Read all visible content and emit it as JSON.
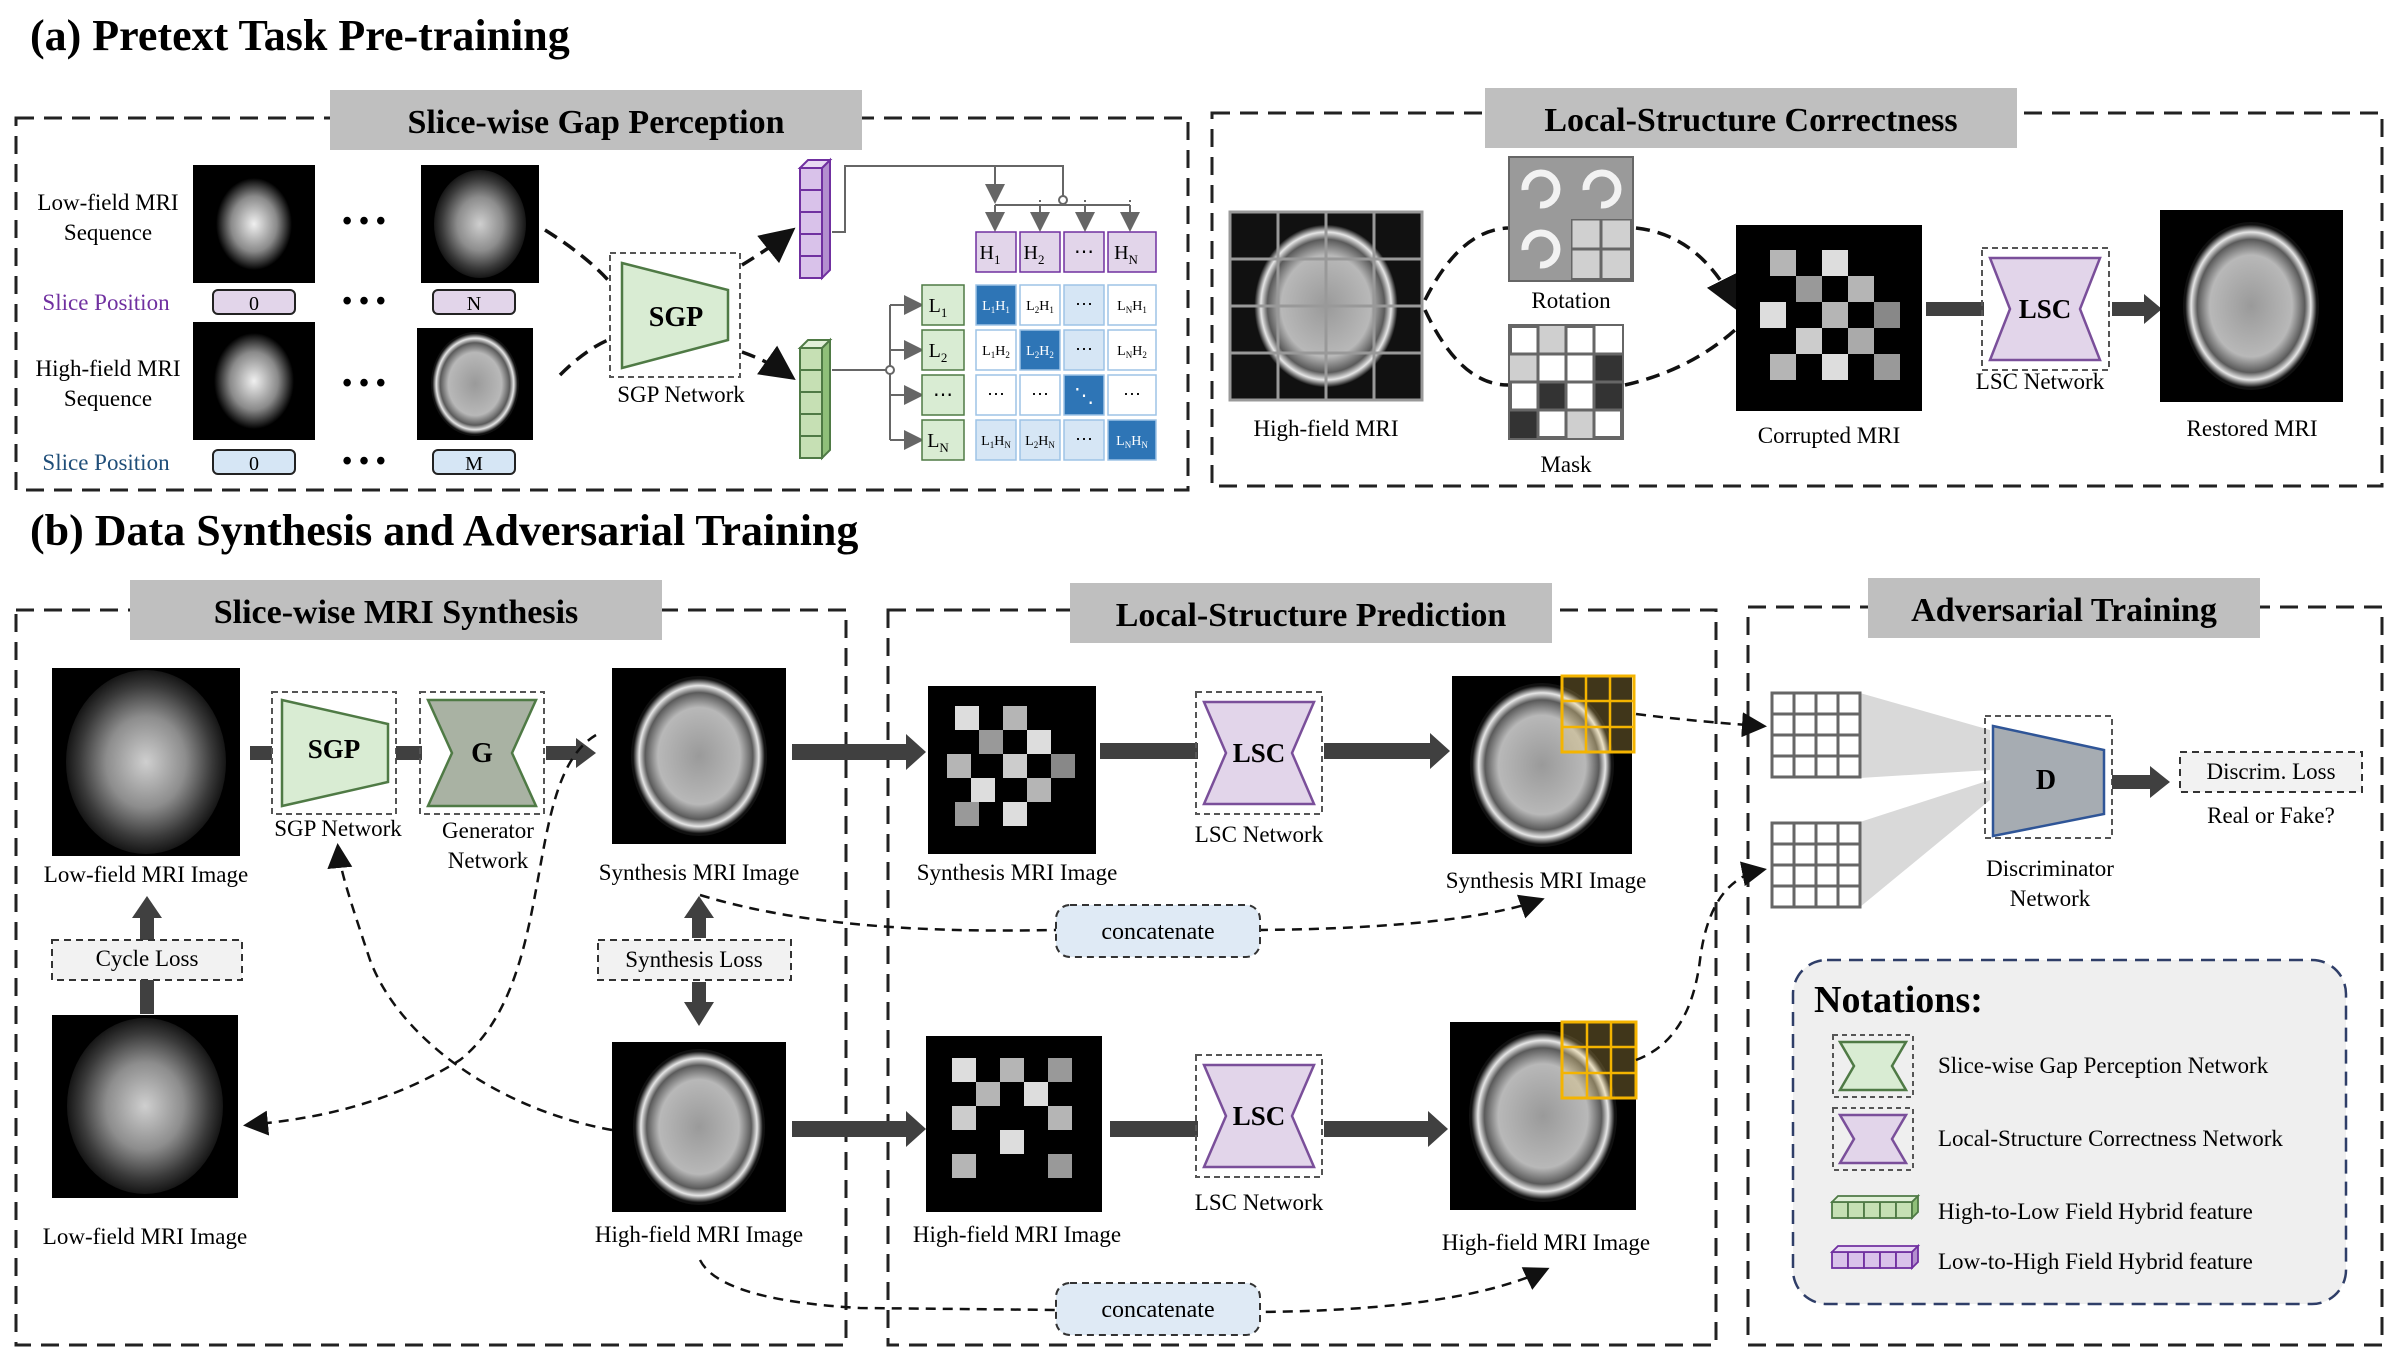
{
  "sections": {
    "a_title": "(a) Pretext Task Pre-training",
    "b_title": "(b) Data Synthesis and Adversarial Training"
  },
  "panels": {
    "sgp_title": "Slice-wise Gap Perception",
    "lsc_title": "Local-Structure Correctness",
    "synth_title": "Slice-wise MRI Synthesis",
    "pred_title": "Local-Structure Prediction",
    "adv_title": "Adversarial Training"
  },
  "sgp_panel": {
    "low_seq_line1": "Low-field MRI",
    "low_seq_line2": "Sequence",
    "high_seq_line1": "High-field MRI",
    "high_seq_line2": "Sequence",
    "slice_pos_label_low": "Slice Position",
    "slice_pos_label_high": "Slice Position",
    "low_pos_start": "0",
    "low_pos_end": "N",
    "high_pos_start": "0",
    "high_pos_end": "M",
    "dots": "• • •",
    "sgp_block": "SGP",
    "sgp_network_label": "SGP Network",
    "matrix_h_headers": [
      "H",
      "H",
      "⋯",
      "H"
    ],
    "matrix_h_subs": [
      "1",
      "2",
      "",
      "N"
    ],
    "matrix_l_headers": [
      "L",
      "L",
      "⋯",
      "L"
    ],
    "matrix_l_subs": [
      "1",
      "2",
      "",
      "N"
    ],
    "cell_dots": "⋯",
    "cell_diag": "⋱"
  },
  "lsc_panel": {
    "high_field_label": "High-field MRI",
    "rotation_label": "Rotation",
    "mask_label": "Mask",
    "corrupted_label": "Corrupted MRI",
    "lsc_block": "LSC",
    "lsc_network_label": "LSC Network",
    "restored_label": "Restored MRI"
  },
  "synth_panel": {
    "low_img_label_top": "Low-field MRI Image",
    "low_img_label_bottom": "Low-field MRI Image",
    "cycle_loss": "Cycle Loss",
    "sgp_block": "SGP",
    "sgp_network_label": "SGP Network",
    "g_block": "G",
    "generator_line1": "Generator",
    "generator_line2": "Network",
    "synthesis_img_label": "Synthesis MRI Image",
    "synthesis_loss": "Synthesis Loss",
    "high_img_label": "High-field MRI Image"
  },
  "pred_panel": {
    "synthesis_img_label": "Synthesis MRI Image",
    "high_img_label": "High-field MRI Image",
    "lsc_block_top": "LSC",
    "lsc_block_bottom": "LSC",
    "lsc_network_top": "LSC Network",
    "lsc_network_bottom": "LSC Network",
    "out_synthesis_label": "Synthesis MRI Image",
    "out_high_label": "High-field MRI Image",
    "concatenate_top": "concatenate",
    "concatenate_bottom": "concatenate"
  },
  "adv_panel": {
    "d_block": "D",
    "discriminator_line1": "Discriminator",
    "discriminator_line2": "Network",
    "discrim_loss": "Discrim. Loss",
    "real_or_fake": "Real or Fake?"
  },
  "notations": {
    "title": "Notations:",
    "items": [
      "Slice-wise Gap Perception Network",
      "Local-Structure Correctness Network",
      "High-to-Low Field Hybrid feature",
      "Low-to-High Field Hybrid feature"
    ]
  },
  "colors": {
    "sgp_green": "#d9ecd3",
    "sgp_stroke": "#4f7a45",
    "lsc_purple": "#e2d5ea",
    "lsc_stroke": "#7a4f9a",
    "title_gray": "#bfbfbf",
    "matrix_dark": "#2e75b6",
    "matrix_light": "#d6e6f5",
    "concat_fill": "#dfeaf5",
    "grid_yellow": "#ffd966",
    "arrow_gray": "#595959",
    "notation_bg": "#efefef"
  }
}
